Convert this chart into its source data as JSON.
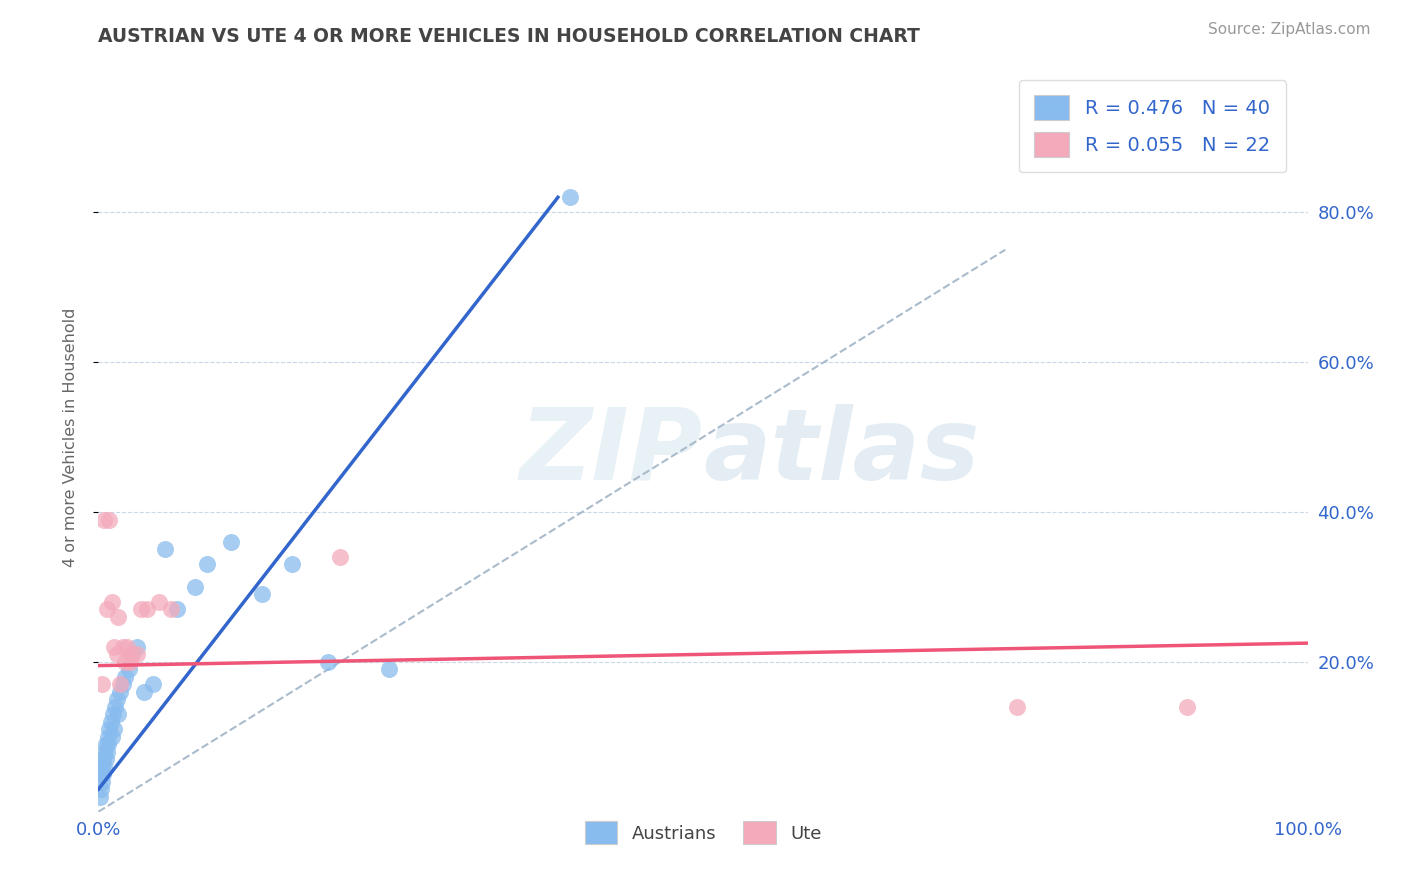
{
  "title": "AUSTRIAN VS UTE 4 OR MORE VEHICLES IN HOUSEHOLD CORRELATION CHART",
  "source": "Source: ZipAtlas.com",
  "ylabel": "4 or more Vehicles in Household",
  "xlim": [
    0,
    1.0
  ],
  "ylim": [
    0,
    1.0
  ],
  "legend1_R": "0.476",
  "legend1_N": "40",
  "legend2_R": "0.055",
  "legend2_N": "22",
  "background_color": "#ffffff",
  "grid_color": "#c8d8e8",
  "blue_scatter_color": "#88bbee",
  "pink_scatter_color": "#f4aabb",
  "blue_line_color": "#3366cc",
  "pink_line_color": "#ee5577",
  "dashed_line_color": "#aabbcc",
  "blue_line_x0": 0.0,
  "blue_line_y0": 0.03,
  "blue_line_x1": 0.38,
  "blue_line_y1": 0.82,
  "pink_line_x0": 0.0,
  "pink_line_y0": 0.195,
  "pink_line_x1": 1.0,
  "pink_line_y1": 0.225,
  "austrians_x": [
    0.001,
    0.002,
    0.002,
    0.003,
    0.003,
    0.004,
    0.004,
    0.005,
    0.005,
    0.006,
    0.006,
    0.007,
    0.008,
    0.008,
    0.009,
    0.01,
    0.011,
    0.012,
    0.013,
    0.014,
    0.015,
    0.016,
    0.018,
    0.02,
    0.022,
    0.025,
    0.028,
    0.032,
    0.038,
    0.045,
    0.055,
    0.065,
    0.08,
    0.09,
    0.11,
    0.135,
    0.16,
    0.19,
    0.24,
    0.39
  ],
  "austrians_y": [
    0.02,
    0.03,
    0.05,
    0.04,
    0.06,
    0.05,
    0.07,
    0.06,
    0.08,
    0.07,
    0.09,
    0.08,
    0.1,
    0.09,
    0.11,
    0.12,
    0.1,
    0.13,
    0.11,
    0.14,
    0.15,
    0.13,
    0.16,
    0.17,
    0.18,
    0.19,
    0.21,
    0.22,
    0.16,
    0.17,
    0.35,
    0.27,
    0.3,
    0.33,
    0.36,
    0.29,
    0.33,
    0.2,
    0.19,
    0.82
  ],
  "ute_x": [
    0.003,
    0.005,
    0.007,
    0.009,
    0.011,
    0.013,
    0.015,
    0.016,
    0.018,
    0.02,
    0.022,
    0.024,
    0.026,
    0.028,
    0.032,
    0.035,
    0.04,
    0.05,
    0.06,
    0.2,
    0.76,
    0.9
  ],
  "ute_y": [
    0.17,
    0.39,
    0.27,
    0.39,
    0.28,
    0.22,
    0.21,
    0.26,
    0.17,
    0.22,
    0.2,
    0.22,
    0.2,
    0.21,
    0.21,
    0.27,
    0.27,
    0.28,
    0.27,
    0.34,
    0.14,
    0.14
  ]
}
